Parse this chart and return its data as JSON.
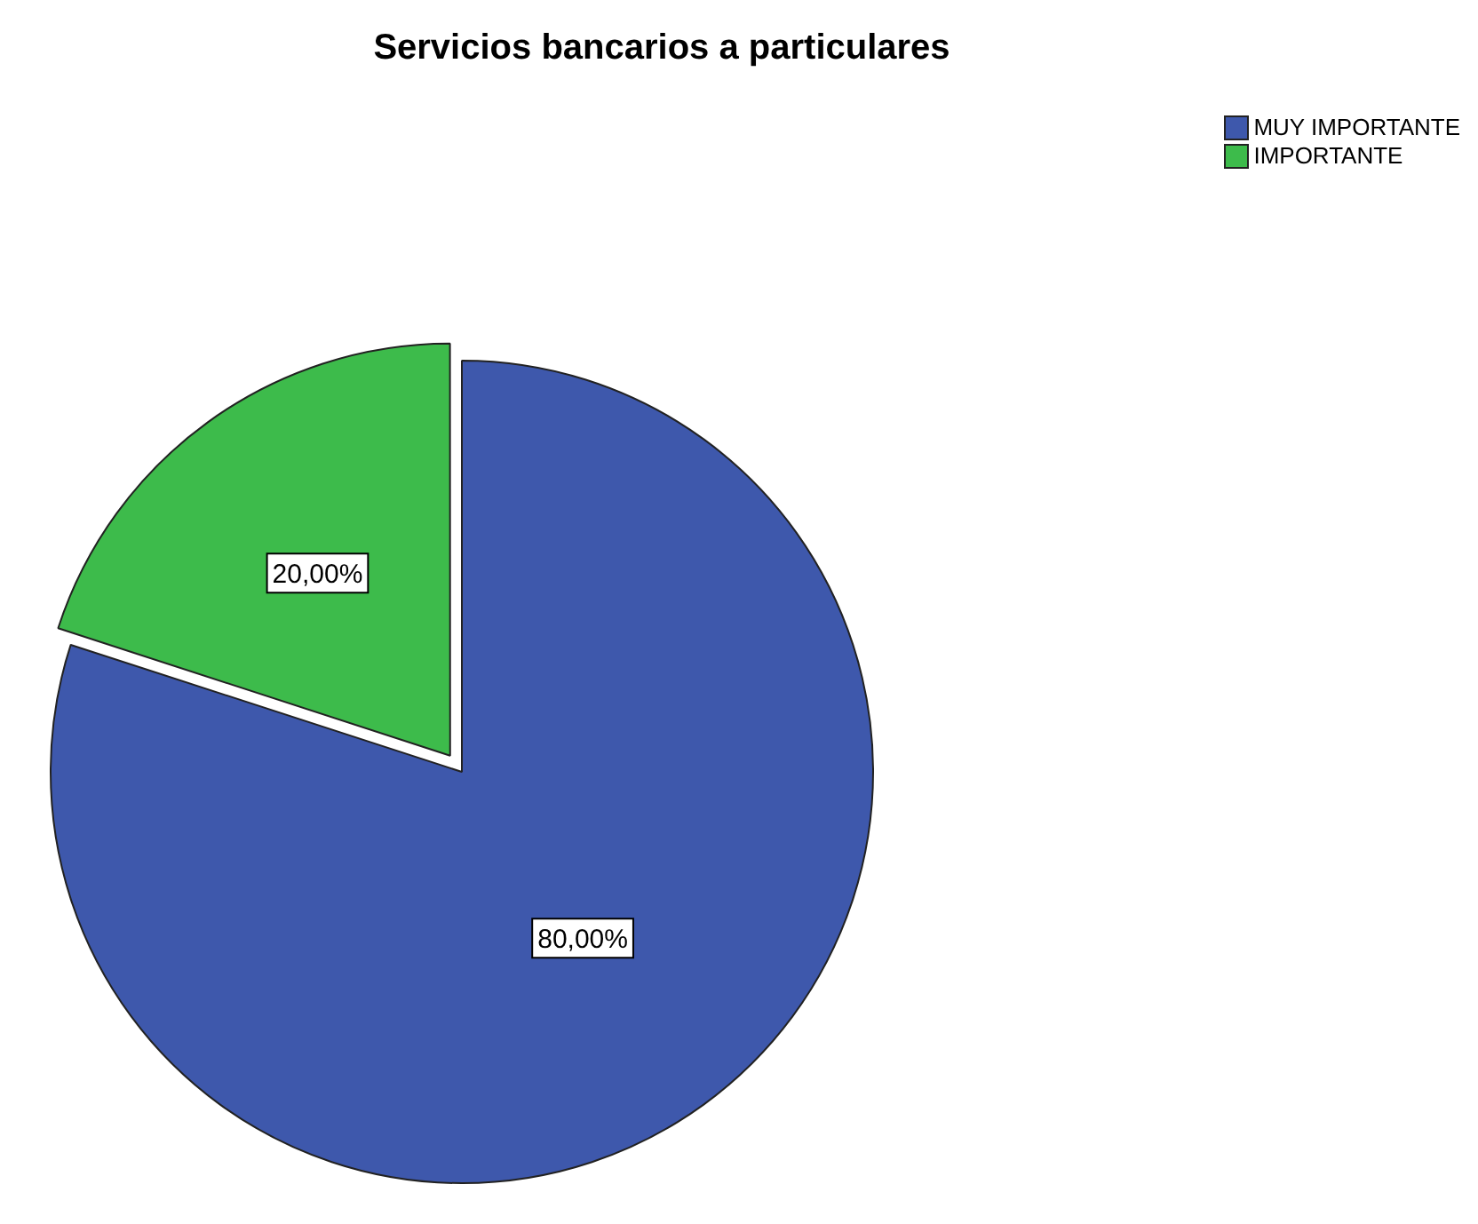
{
  "chart_data": {
    "type": "pie",
    "title": "Servicios bancarios a particulares",
    "categories": [
      "MUY IMPORTANTE",
      "IMPORTANTE"
    ],
    "values": [
      80,
      20
    ],
    "colors": [
      "#3e58ac",
      "#3dbb4b"
    ],
    "value_labels": [
      "80,00%",
      "20,00%"
    ],
    "legend": "top right"
  }
}
